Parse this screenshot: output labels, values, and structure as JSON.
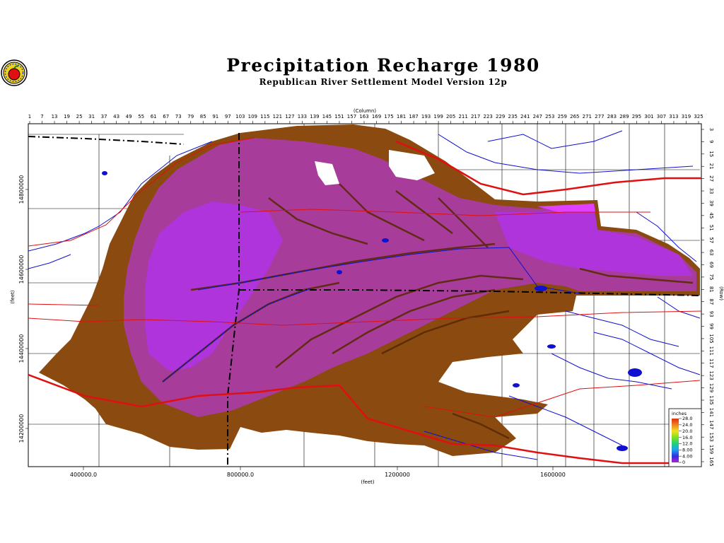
{
  "title": "Precipitation Recharge 1980",
  "subtitle": "Republican River Settlement Model Version 12p",
  "top_axis": {
    "label": "(Column)",
    "ticks": [
      "1",
      "7",
      "13",
      "19",
      "25",
      "31",
      "37",
      "43",
      "49",
      "55",
      "61",
      "67",
      "73",
      "79",
      "85",
      "91",
      "97",
      "103",
      "109",
      "115",
      "121",
      "127",
      "133",
      "139",
      "145",
      "151",
      "157",
      "163",
      "169",
      "175",
      "181",
      "187",
      "193",
      "199",
      "205",
      "211",
      "217",
      "223",
      "229",
      "235",
      "241",
      "247",
      "253",
      "259",
      "265",
      "271",
      "277",
      "283",
      "289",
      "295",
      "301",
      "307",
      "313",
      "319",
      "325"
    ]
  },
  "right_axis": {
    "label": "(Row)",
    "ticks": [
      "3",
      "9",
      "15",
      "21",
      "27",
      "33",
      "39",
      "45",
      "51",
      "57",
      "63",
      "69",
      "75",
      "81",
      "87",
      "93",
      "99",
      "105",
      "111",
      "117",
      "123",
      "129",
      "135",
      "141",
      "147",
      "153",
      "159",
      "165"
    ]
  },
  "bottom_axis": {
    "label": "(feet)",
    "ticks": [
      "400000.0",
      "800000.0",
      "1200000",
      "1600000"
    ]
  },
  "left_axis": {
    "label": "(feet)",
    "ticks": [
      "14800000",
      "14600000",
      "14400000",
      "14200000"
    ]
  },
  "legend": {
    "title": "inches",
    "entries": [
      {
        "label": "28.0",
        "color": "#e03010"
      },
      {
        "label": "24.0",
        "color": "#f08020"
      },
      {
        "label": "20.0",
        "color": "#f0e020"
      },
      {
        "label": "16.0",
        "color": "#80e020"
      },
      {
        "label": "12.0",
        "color": "#20d080"
      },
      {
        "label": "8.00",
        "color": "#20a0f0"
      },
      {
        "label": "4.00",
        "color": "#3030e0"
      },
      {
        "label": "0",
        "color": "#b020d0"
      }
    ]
  },
  "colors": {
    "low_recharge": "#8b4a0f",
    "mid_recharge": "#a83c9a",
    "high_recharge": "#b030e0",
    "rivers": "#1010d0",
    "roads": "#e01010",
    "boundaries": "#000000"
  }
}
